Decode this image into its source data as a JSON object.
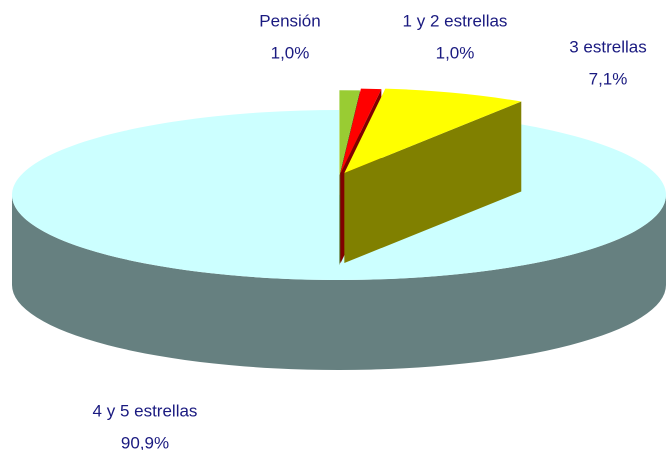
{
  "chart_data": {
    "type": "pie3d",
    "categories": [
      "Pensión",
      "1 y 2 estrellas",
      "3 estrellas",
      "4 y 5 estrellas"
    ],
    "values": [
      1.0,
      1.0,
      7.1,
      90.9
    ],
    "value_labels": [
      "1,0%",
      "1,0%",
      "7,1%",
      "90,9%"
    ],
    "colors": [
      "#99cc33",
      "#ff0000",
      "#ffff00",
      "#ccffff"
    ],
    "side_colors": [
      "#4d6619",
      "#800000",
      "#808000",
      "#668080"
    ]
  }
}
